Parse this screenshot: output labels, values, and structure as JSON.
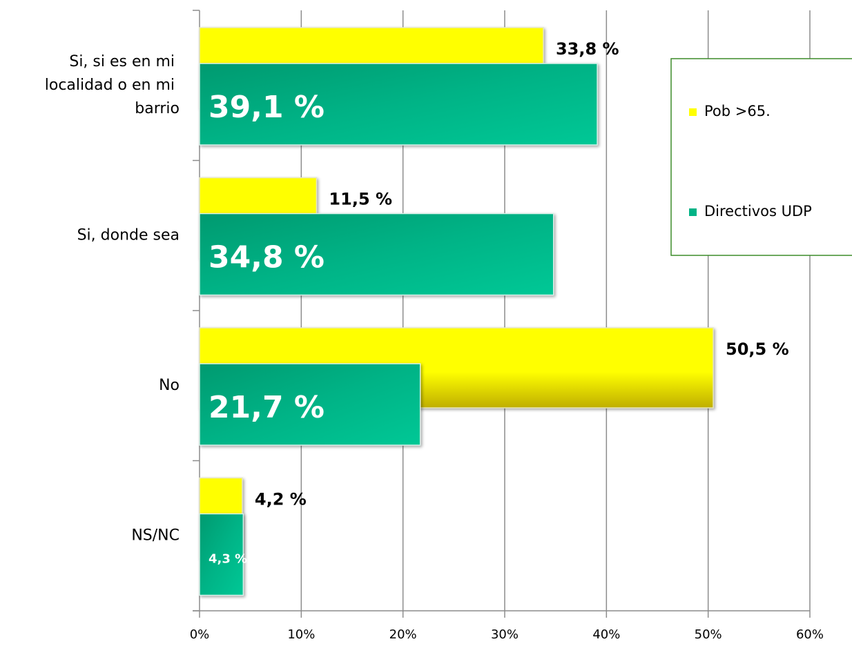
{
  "chart_data": {
    "type": "barh",
    "categories": [
      "Si, si es en mi localidad o en mi barrio",
      "Si, donde sea",
      "No",
      "NS/NC"
    ],
    "series": [
      {
        "name": "Pob >65.",
        "color": "#ffff00",
        "values": [
          33.8,
          11.5,
          50.5,
          4.2
        ],
        "value_labels": [
          "33,8 %",
          "11,5 %",
          "50,5 %",
          "4,2 %"
        ]
      },
      {
        "name": "Directivos UDP",
        "color": "#00b386",
        "values": [
          39.1,
          34.8,
          21.7,
          4.3
        ],
        "value_labels": [
          "39,1 %",
          "34,8 %",
          "21,7 %",
          "4,3 %"
        ]
      }
    ],
    "xlim": [
      0,
      60
    ],
    "xticks": [
      {
        "value": 0,
        "label": "0%"
      },
      {
        "value": 10,
        "label": "10%"
      },
      {
        "value": 20,
        "label": "20%"
      },
      {
        "value": 30,
        "label": "30%"
      },
      {
        "value": 40,
        "label": "40%"
      },
      {
        "value": 50,
        "label": "50%"
      },
      {
        "value": 60,
        "label": "60%"
      }
    ],
    "grid": true
  }
}
